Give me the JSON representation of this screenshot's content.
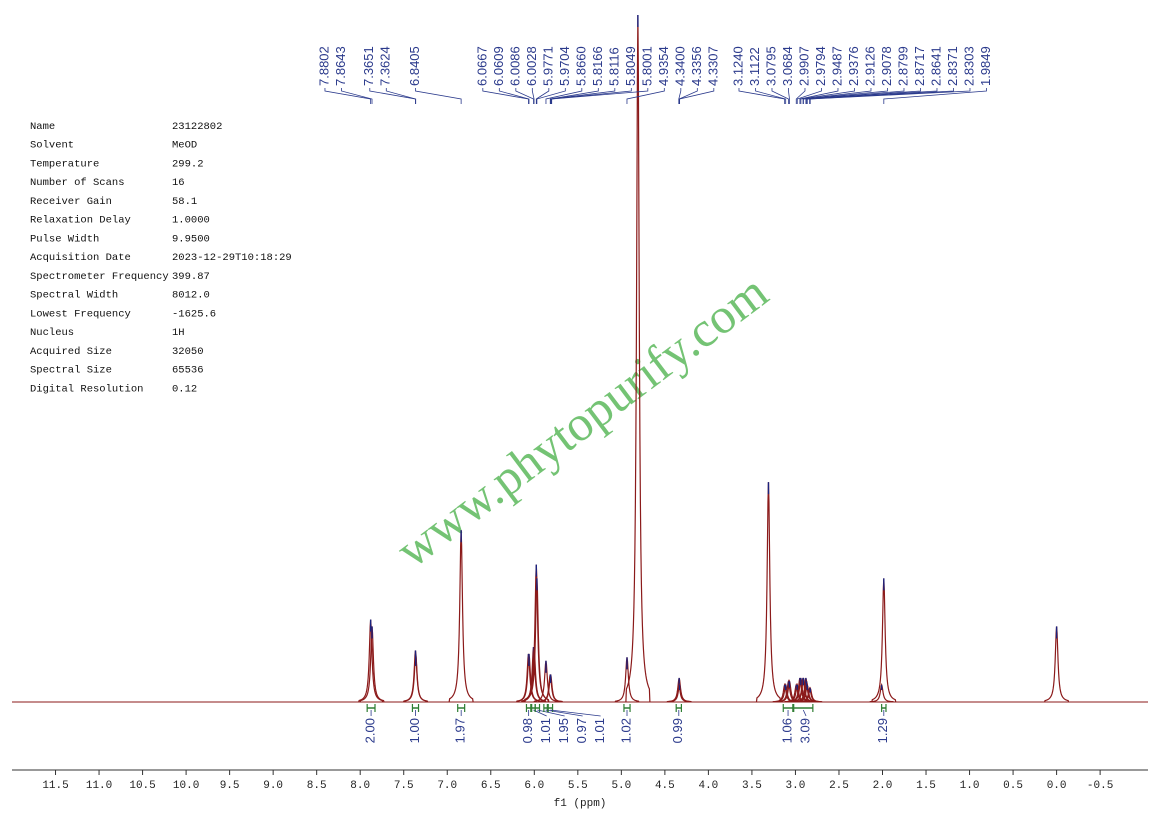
{
  "chart_data": {
    "type": "nmr",
    "x_label": "f1 (ppm)",
    "watermark": "www.phytopurify.com",
    "xlim": [
      12.0,
      -1.05
    ],
    "ylim": [
      0,
      100
    ],
    "xticks": [
      11.5,
      {
        "value": 11.0,
        "label": "11.0"
      },
      10.5,
      {
        "value": 10.0,
        "label": "10.0"
      },
      9.5,
      {
        "value": 9.0,
        "label": "9.0"
      },
      8.5,
      {
        "value": 8.0,
        "label": "8.0"
      },
      7.5,
      {
        "value": 7.0,
        "label": "7.0"
      },
      6.5,
      {
        "value": 6.0,
        "label": "6.0"
      },
      5.5,
      {
        "value": 5.0,
        "label": "5.0"
      },
      4.5,
      {
        "value": 4.0,
        "label": "4.0"
      },
      3.5,
      {
        "value": 3.0,
        "label": "3.0"
      },
      2.5,
      {
        "value": 2.0,
        "label": "2.0"
      },
      1.5,
      {
        "value": 1.0,
        "label": "1.0"
      },
      0.5,
      {
        "value": 0.0,
        "label": "0.0"
      },
      -0.5
    ],
    "color": "#8b1a1a",
    "parameters": [
      [
        "Name",
        "23122802"
      ],
      [
        "Solvent",
        "MeOD"
      ],
      [
        "Temperature",
        "299.2"
      ],
      [
        "Number of Scans",
        "16"
      ],
      [
        "Receiver Gain",
        "58.1"
      ],
      [
        "Relaxation Delay",
        "1.0000"
      ],
      [
        "Pulse Width",
        "9.9500"
      ],
      [
        "Acquisition Date",
        "2023-12-29T10:18:29"
      ],
      [
        "Spectrometer Frequency",
        "399.87"
      ],
      [
        "Spectral Width",
        "8012.0"
      ],
      [
        "Lowest Frequency",
        "-1625.6"
      ],
      [
        "Nucleus",
        "1H"
      ],
      [
        "Acquired Size",
        "32050"
      ],
      [
        "Spectral Size",
        "65536"
      ],
      [
        "Digital Resolution",
        "0.12"
      ]
    ],
    "peak_labels": [
      {
        "value": 7.8802,
        "label": "7.8802"
      },
      {
        "value": 7.8643,
        "label": "7.8643"
      },
      {
        "value": 7.3651,
        "label": "7.3651"
      },
      {
        "value": 7.3624,
        "label": "7.3624"
      },
      {
        "value": 6.8405,
        "label": "6.8405"
      },
      {
        "value": 6.0667,
        "label": "6.0667"
      },
      {
        "value": 6.0609,
        "label": "6.0609"
      },
      {
        "value": 6.0086,
        "label": "6.0086"
      },
      {
        "value": 6.0028,
        "label": "6.0028"
      },
      {
        "value": 5.9771,
        "label": "5.9771"
      },
      {
        "value": 5.9704,
        "label": "5.9704"
      },
      {
        "value": 5.866,
        "label": "5.8660"
      },
      {
        "value": 5.8166,
        "label": "5.8166"
      },
      {
        "value": 5.8116,
        "label": "5.8116"
      },
      {
        "value": 5.8049,
        "label": "5.8049"
      },
      {
        "value": 5.8001,
        "label": "5.8001"
      },
      {
        "value": 4.9354,
        "label": "4.9354"
      },
      {
        "value": 4.34,
        "label": "4.3400"
      },
      {
        "value": 4.3356,
        "label": "4.3356"
      },
      {
        "value": 4.3307,
        "label": "4.3307"
      },
      {
        "value": 3.124,
        "label": "3.1240"
      },
      {
        "value": 3.1122,
        "label": "3.1122"
      },
      {
        "value": 3.0795,
        "label": "3.0795"
      },
      {
        "value": 3.0684,
        "label": "3.0684"
      },
      {
        "value": 2.9907,
        "label": "2.9907"
      },
      {
        "value": 2.9794,
        "label": "2.9794"
      },
      {
        "value": 2.9487,
        "label": "2.9487"
      },
      {
        "value": 2.9376,
        "label": "2.9376"
      },
      {
        "value": 2.9126,
        "label": "2.9126"
      },
      {
        "value": 2.9078,
        "label": "2.9078"
      },
      {
        "value": 2.8799,
        "label": "2.8799"
      },
      {
        "value": 2.8717,
        "label": "2.8717"
      },
      {
        "value": 2.8641,
        "label": "2.8641"
      },
      {
        "value": 2.8371,
        "label": "2.8371"
      },
      {
        "value": 2.8303,
        "label": "2.8303"
      },
      {
        "value": 1.9849,
        "label": "1.9849"
      }
    ],
    "integrals": [
      {
        "range": [
          7.92,
          7.83
        ],
        "value": 2,
        "label": "2.00"
      },
      {
        "range": [
          7.4,
          7.33
        ],
        "value": 1,
        "label": "1.00"
      },
      {
        "range": [
          6.88,
          6.8
        ],
        "value": 1.97,
        "label": "1.97"
      },
      {
        "range": [
          6.09,
          6.04
        ],
        "value": 0.98,
        "label": "0.98"
      },
      {
        "range": [
          6.03,
          5.99
        ],
        "value": 1.01,
        "label": "1.01"
      },
      {
        "range": [
          5.99,
          5.94
        ],
        "value": 1.95,
        "label": "1.95"
      },
      {
        "range": [
          5.89,
          5.85
        ],
        "value": 0.97,
        "label": "0.97"
      },
      {
        "range": [
          5.84,
          5.79
        ],
        "value": 1.01,
        "label": "1.01"
      },
      {
        "range": [
          4.97,
          4.9
        ],
        "value": 1.02,
        "label": "1.02"
      },
      {
        "range": [
          4.37,
          4.31
        ],
        "value": 0.99,
        "label": "0.99"
      },
      {
        "range": [
          3.14,
          3.03
        ],
        "value": 1.06,
        "label": "1.06"
      },
      {
        "range": [
          3.02,
          2.8
        ],
        "value": 3.09,
        "label": "3.09"
      },
      {
        "range": [
          2.01,
          1.96
        ],
        "value": 1.29,
        "label": "1.29"
      }
    ],
    "peaks": [
      {
        "ppm": 7.88,
        "height": 12
      },
      {
        "ppm": 7.864,
        "height": 11
      },
      {
        "ppm": 7.365,
        "height": 7.5
      },
      {
        "ppm": 7.362,
        "height": 7
      },
      {
        "ppm": 6.8405,
        "height": 25
      },
      {
        "ppm": 6.067,
        "height": 7
      },
      {
        "ppm": 6.061,
        "height": 7
      },
      {
        "ppm": 6.009,
        "height": 8
      },
      {
        "ppm": 6.003,
        "height": 8
      },
      {
        "ppm": 5.977,
        "height": 20
      },
      {
        "ppm": 5.97,
        "height": 18
      },
      {
        "ppm": 5.866,
        "height": 6
      },
      {
        "ppm": 5.817,
        "height": 4
      },
      {
        "ppm": 5.812,
        "height": 4
      },
      {
        "ppm": 4.935,
        "height": 6.5
      },
      {
        "ppm": 4.81,
        "height": 100
      },
      {
        "ppm": 4.34,
        "height": 2.5
      },
      {
        "ppm": 4.336,
        "height": 3.5
      },
      {
        "ppm": 4.331,
        "height": 2.5
      },
      {
        "ppm": 3.31,
        "height": 32
      },
      {
        "ppm": 3.124,
        "height": 2.5
      },
      {
        "ppm": 3.112,
        "height": 2.5
      },
      {
        "ppm": 3.08,
        "height": 3
      },
      {
        "ppm": 3.068,
        "height": 3
      },
      {
        "ppm": 2.991,
        "height": 2.5
      },
      {
        "ppm": 2.979,
        "height": 2.5
      },
      {
        "ppm": 2.949,
        "height": 3.5
      },
      {
        "ppm": 2.938,
        "height": 3.5
      },
      {
        "ppm": 2.913,
        "height": 3.5
      },
      {
        "ppm": 2.908,
        "height": 3.5
      },
      {
        "ppm": 2.88,
        "height": 3.5
      },
      {
        "ppm": 2.872,
        "height": 3
      },
      {
        "ppm": 2.864,
        "height": 2.5
      },
      {
        "ppm": 2.837,
        "height": 2
      },
      {
        "ppm": 2.83,
        "height": 2
      },
      {
        "ppm": 2.01,
        "height": 2.5
      },
      {
        "ppm": 1.985,
        "height": 18
      },
      {
        "ppm": 0.0,
        "height": 11
      }
    ]
  }
}
